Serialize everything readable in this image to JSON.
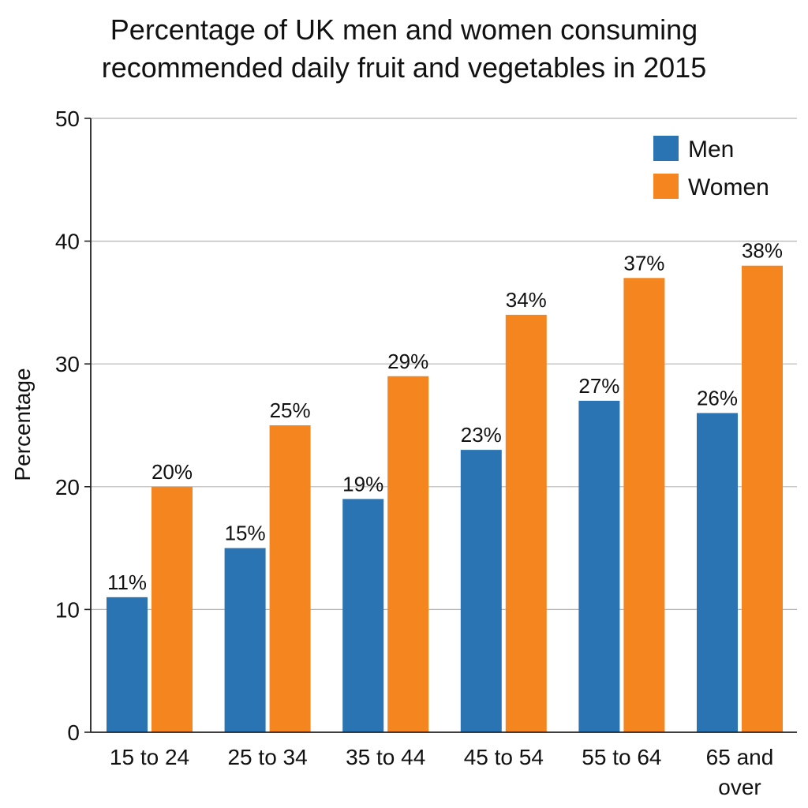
{
  "chart_data": {
    "type": "bar",
    "title_line1": "Percentage of UK men and women consuming",
    "title_line2": "recommended daily fruit and vegetables in 2015",
    "xlabel": "",
    "ylabel": "Percentage",
    "ylim": [
      0,
      50
    ],
    "yticks": [
      0,
      10,
      20,
      30,
      40,
      50
    ],
    "grid": true,
    "legend_position": "top-right",
    "categories": [
      [
        "15 to 24"
      ],
      [
        "25 to 34"
      ],
      [
        "35 to 44"
      ],
      [
        "45 to 54"
      ],
      [
        "55 to 64"
      ],
      [
        "65 and",
        "over"
      ]
    ],
    "series": [
      {
        "name": "Men",
        "color": "#2b74b3",
        "values": [
          11,
          15,
          19,
          23,
          27,
          26
        ],
        "labels": [
          "11%",
          "15%",
          "19%",
          "23%",
          "27%",
          "26%"
        ]
      },
      {
        "name": "Women",
        "color": "#f5851f",
        "values": [
          20,
          25,
          29,
          34,
          37,
          38
        ],
        "labels": [
          "20%",
          "25%",
          "29%",
          "34%",
          "37%",
          "38%"
        ]
      }
    ]
  }
}
